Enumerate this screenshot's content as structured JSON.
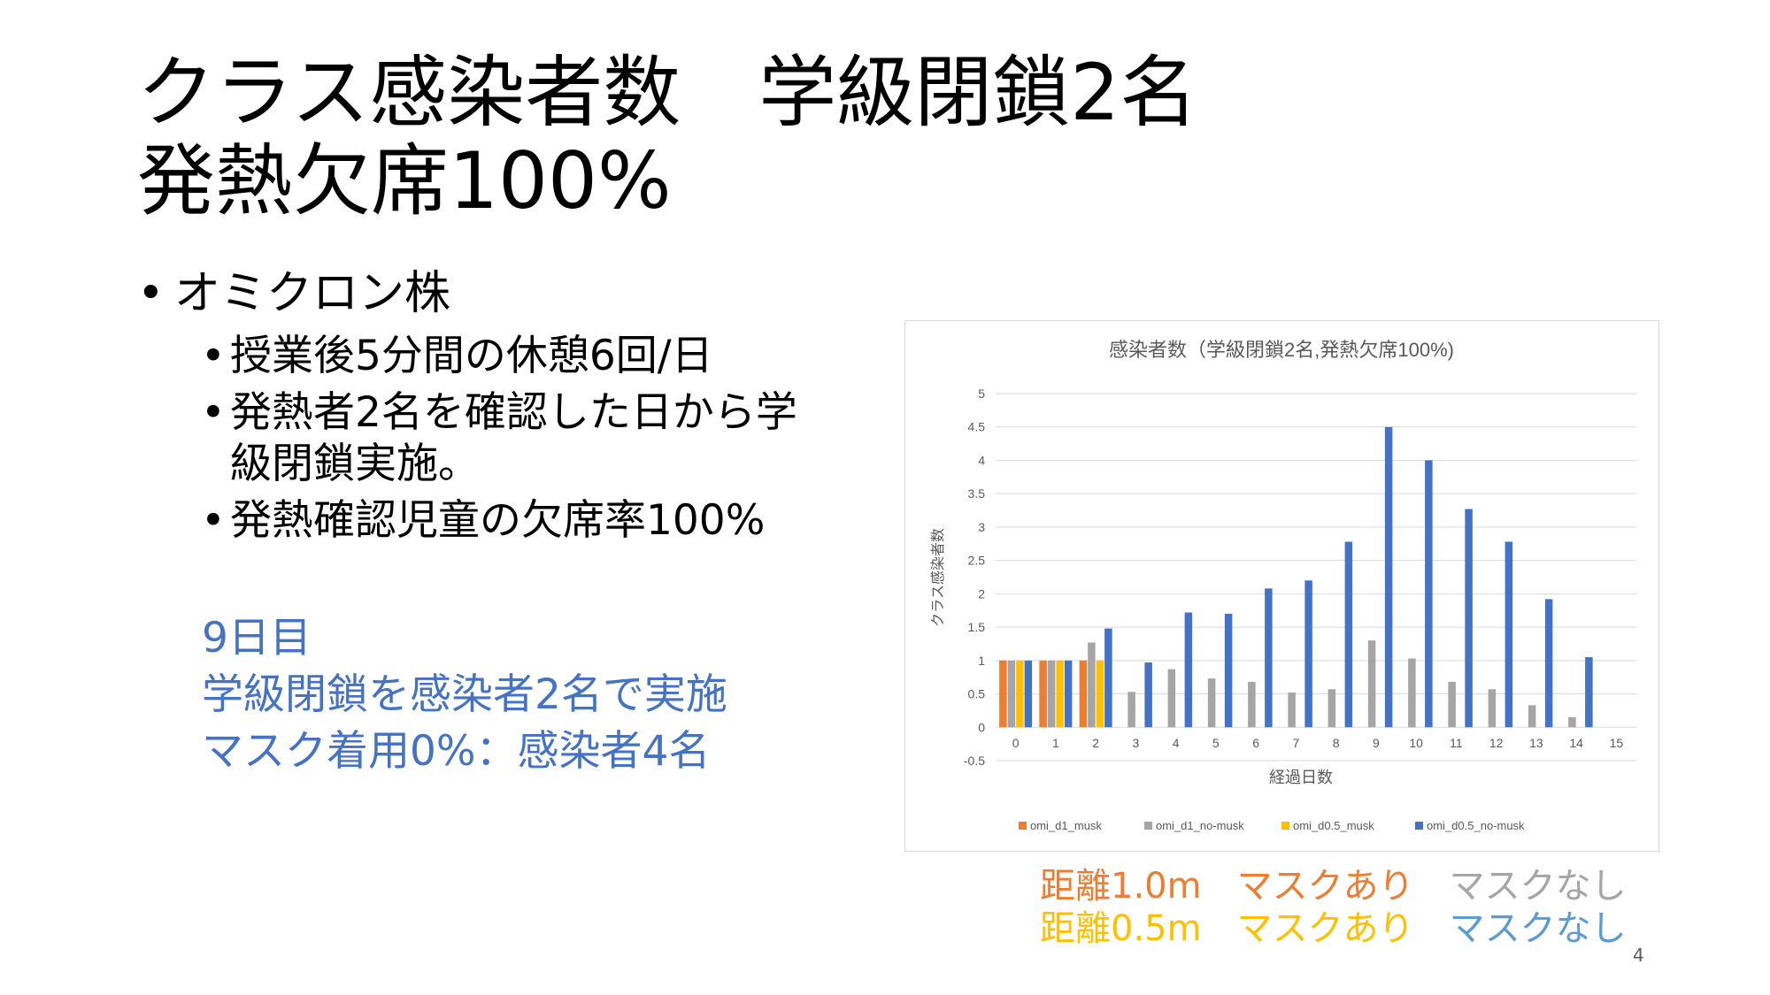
{
  "slide": {
    "title_line1": "クラス感染者数　学級閉鎖2名",
    "title_line2": "発熱欠席100%",
    "bullet_main": "オミクロン株",
    "sub_bullets": [
      "授業後5分間の休憩6回/日",
      "発熱者2名を確認した日から学級閉鎖実施。",
      "発熱確認児童の欠席率100%"
    ],
    "note_lines": [
      "9日目",
      "学級閉鎖を感染者2名で実施",
      "マスク着用0%：感染者4名"
    ],
    "legend_row1": {
      "distance": "距離1.0m",
      "mask_on": "マスクあり",
      "mask_off": "マスクなし"
    },
    "legend_row2": {
      "distance": "距離0.5m",
      "mask_on": "マスクあり",
      "mask_off": "マスクなし"
    },
    "page_number": "4",
    "colors": {
      "title": "#000000",
      "note": "#4472C4",
      "orange": "#ED7D31",
      "gray": "#A5A5A5",
      "yellow": "#FFC000",
      "blue": "#4472C4"
    }
  },
  "chart_data": {
    "type": "bar",
    "title": "感染者数（学級閉鎖2名,発熱欠席100%)",
    "xlabel": "経過日数",
    "ylabel": "クラス感染者数",
    "categories": [
      "0",
      "1",
      "2",
      "3",
      "4",
      "5",
      "6",
      "7",
      "8",
      "9",
      "10",
      "11",
      "12",
      "13",
      "14",
      "15"
    ],
    "ylim": [
      -0.5,
      5
    ],
    "yticks": [
      "-0.5",
      "0",
      "0.5",
      "1",
      "1.5",
      "2",
      "2.5",
      "3",
      "3.5",
      "4",
      "4.5",
      "5"
    ],
    "grid": true,
    "legend_position": "bottom",
    "series": [
      {
        "name": "omi_d1_musk",
        "color": "#ED7D31",
        "values": [
          1,
          1,
          1,
          0,
          0,
          0,
          0,
          0,
          0,
          0,
          0,
          0,
          0,
          0,
          0,
          0
        ]
      },
      {
        "name": "omi_d1_no-musk",
        "color": "#A5A5A5",
        "values": [
          1,
          1,
          1.27,
          0.53,
          0.87,
          0.73,
          0.68,
          0.52,
          0.57,
          1.3,
          1.03,
          0.68,
          0.57,
          0.33,
          0.15,
          0
        ]
      },
      {
        "name": "omi_d0.5_musk",
        "color": "#FFC000",
        "values": [
          1,
          1,
          1,
          0,
          0,
          0,
          0,
          0,
          0,
          0,
          0,
          0,
          0,
          0,
          0,
          0
        ]
      },
      {
        "name": "omi_d0.5_no-musk",
        "color": "#4472C4",
        "values": [
          1,
          1,
          1.48,
          0.97,
          1.72,
          1.7,
          2.08,
          2.2,
          2.78,
          4.5,
          4.0,
          3.27,
          2.78,
          1.92,
          1.05,
          0
        ]
      }
    ]
  }
}
